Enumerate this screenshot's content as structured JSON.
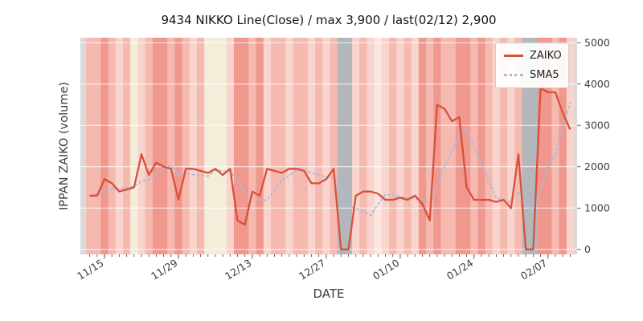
{
  "legend": {
    "items": [
      {
        "label": "ZAIKO"
      },
      {
        "label": "SMA5"
      }
    ]
  },
  "chart_data": {
    "type": "line",
    "title": "9434 NIKKO Line(Close) / max 3,900 / last(02/12) 2,900",
    "xlabel": "DATE",
    "ylabel": "IPPAN ZAIKO (volume)",
    "ylim": [
      -120,
      5120
    ],
    "y_ticks": [
      0,
      1000,
      2000,
      3000,
      4000,
      5000
    ],
    "x_tick_labels": [
      "11/15",
      "11/29",
      "12/13",
      "12/27",
      "01/10",
      "01/24",
      "02/07"
    ],
    "x_tick_indices": [
      2,
      12,
      22,
      32,
      42,
      52,
      62
    ],
    "legend_position": "upper right",
    "grid": {
      "horizontal": true,
      "color": "#ffffff"
    },
    "dates": [
      "11/13",
      "11/14",
      "11/15",
      "11/16",
      "11/17",
      "11/20",
      "11/21",
      "11/22",
      "11/23",
      "11/24",
      "11/27",
      "11/28",
      "11/29",
      "11/30",
      "12/01",
      "12/04",
      "12/05",
      "12/06",
      "12/07",
      "12/08",
      "12/11",
      "12/12",
      "12/13",
      "12/14",
      "12/15",
      "12/18",
      "12/19",
      "12/20",
      "12/21",
      "12/22",
      "12/25",
      "12/26",
      "12/27",
      "12/28",
      "12/29",
      "01/01",
      "01/02",
      "01/03",
      "01/04",
      "01/05",
      "01/08",
      "01/09",
      "01/10",
      "01/11",
      "01/12",
      "01/15",
      "01/16",
      "01/17",
      "01/18",
      "01/19",
      "01/22",
      "01/23",
      "01/24",
      "01/25",
      "01/26",
      "01/29",
      "01/30",
      "01/31",
      "02/01",
      "02/02",
      "02/05",
      "02/06",
      "02/07",
      "02/08",
      "02/09",
      "02/12"
    ],
    "series": [
      {
        "name": "ZAIKO",
        "style": "solid",
        "color": "#d8503c",
        "values": [
          1300,
          1300,
          1700,
          1600,
          1400,
          1450,
          1500,
          2300,
          1800,
          2100,
          2000,
          1950,
          1200,
          1950,
          1950,
          1900,
          1850,
          1950,
          1800,
          1950,
          700,
          600,
          1400,
          1300,
          1950,
          1900,
          1850,
          1950,
          1950,
          1900,
          1600,
          1600,
          1700,
          1950,
          0,
          0,
          1300,
          1400,
          1400,
          1350,
          1200,
          1200,
          1250,
          1200,
          1300,
          1100,
          700,
          3500,
          3400,
          3100,
          3200,
          1500,
          1200,
          1200,
          1200,
          1150,
          1200,
          1000,
          2300,
          0,
          0,
          3900,
          3800,
          3800,
          3300,
          2900
        ]
      },
      {
        "name": "SMA5",
        "style": "dotted",
        "color": "#a9bdd9",
        "derived": true,
        "window": 5
      }
    ],
    "background": {
      "plot_color": "#d9d9d9",
      "band_palette": {
        "s": "#f0978e",
        "m": "#f5b9b0",
        "l": "#f9d4cd",
        "vl": "#fbe6e1",
        "c": "#f3eeda",
        "g": "#b3b7bc"
      },
      "band_keys": [
        "m",
        "m",
        "s",
        "m",
        "l",
        "m",
        "c",
        "l",
        "m",
        "s",
        "s",
        "m",
        "s",
        "m",
        "l",
        "m",
        "c",
        "c",
        "c",
        "l",
        "s",
        "s",
        "m",
        "s",
        "l",
        "m",
        "m",
        "l",
        "m",
        "m",
        "l",
        "m",
        "l",
        "m",
        "g",
        "g",
        "l",
        "m",
        "l",
        "vl",
        "l",
        "m",
        "l",
        "m",
        "l",
        "s",
        "m",
        "s",
        "m",
        "m",
        "s",
        "s",
        "m",
        "s",
        "m",
        "l",
        "m",
        "l",
        "m",
        "g",
        "g",
        "s",
        "s",
        "m",
        "s",
        "l"
      ]
    }
  }
}
